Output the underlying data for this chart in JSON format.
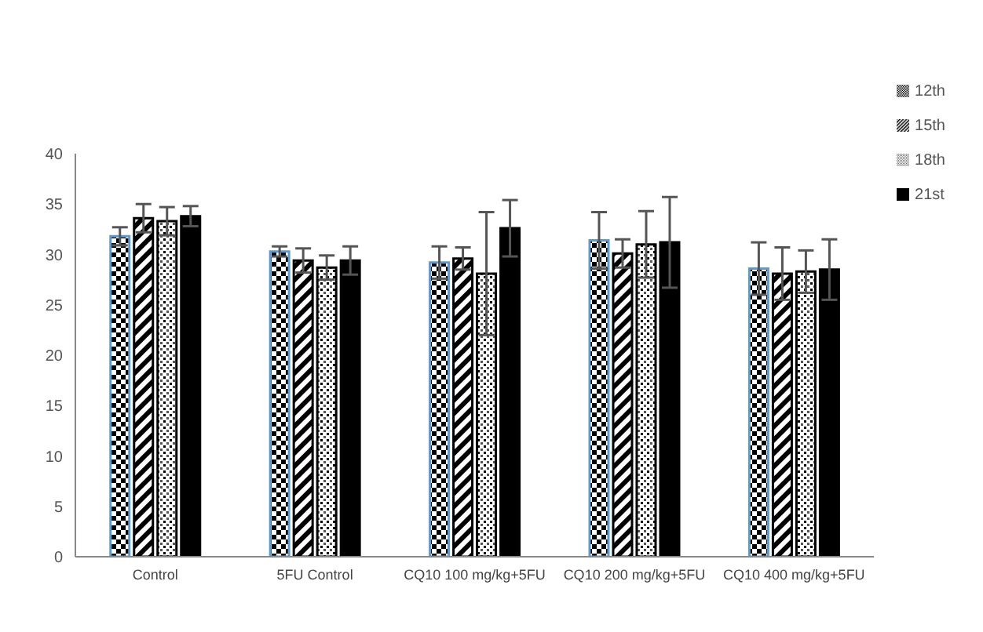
{
  "chart_data": {
    "type": "bar",
    "categories": [
      "Control",
      "5FU Control",
      "CQ10 100 mg/kg+5FU",
      "CQ10 200 mg/kg+5FU",
      "CQ10 400 mg/kg+5FU"
    ],
    "series": [
      {
        "name": "12th",
        "color": "#5b9bd5",
        "values": [
          31.8,
          30.3,
          29.2,
          31.4,
          28.6
        ],
        "errors": [
          0.9,
          0.5,
          1.6,
          2.8,
          2.6
        ]
      },
      {
        "name": "15th",
        "color": "#000000",
        "values": [
          33.6,
          29.4,
          29.6,
          30.1,
          28.1
        ],
        "errors": [
          1.4,
          1.2,
          1.1,
          1.4,
          2.6
        ]
      },
      {
        "name": "18th",
        "color": "#000000",
        "values": [
          33.3,
          28.7,
          28.1,
          31.0,
          28.3
        ],
        "errors": [
          1.4,
          1.2,
          6.1,
          3.3,
          2.1
        ]
      },
      {
        "name": "21st",
        "color": "#000000",
        "values": [
          33.8,
          29.4,
          32.6,
          31.2,
          28.5
        ],
        "errors": [
          1.0,
          1.4,
          2.8,
          4.5,
          3.0
        ]
      }
    ],
    "ylim": [
      0,
      40
    ],
    "yticks": [
      0,
      5,
      10,
      15,
      20,
      25,
      30,
      35,
      40
    ],
    "legend": "top right"
  }
}
